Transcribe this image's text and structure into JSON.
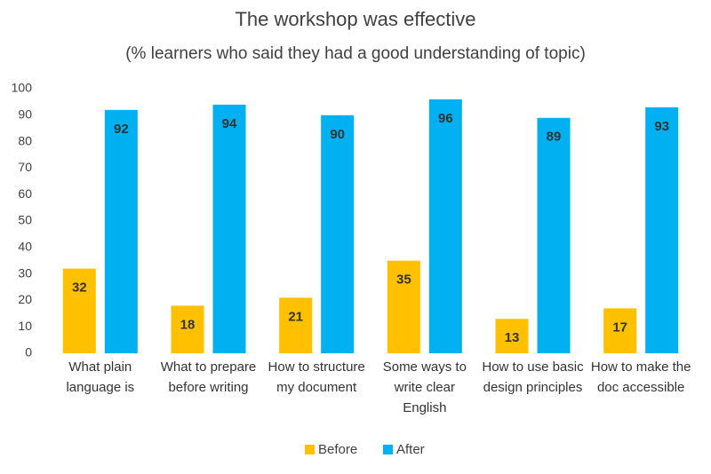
{
  "chart_data": {
    "type": "bar",
    "title": "The workshop was effective",
    "subtitle": "(% learners who said they had a good understanding of topic)",
    "categories": [
      "What plain language is",
      "What to prepare before writing",
      "How to structure my document",
      "Some ways to write clear English",
      "How to use basic design principles",
      "How to make the doc accessible"
    ],
    "series": [
      {
        "name": "Before",
        "color": "#ffc000",
        "values": [
          32,
          18,
          21,
          35,
          13,
          17
        ]
      },
      {
        "name": "After",
        "color": "#00b0f0",
        "values": [
          92,
          94,
          90,
          96,
          89,
          93
        ]
      }
    ],
    "ylim": [
      0,
      100
    ],
    "yticks": [
      0,
      10,
      20,
      30,
      40,
      50,
      60,
      70,
      80,
      90,
      100
    ],
    "grid": false,
    "legend": "bottom"
  }
}
